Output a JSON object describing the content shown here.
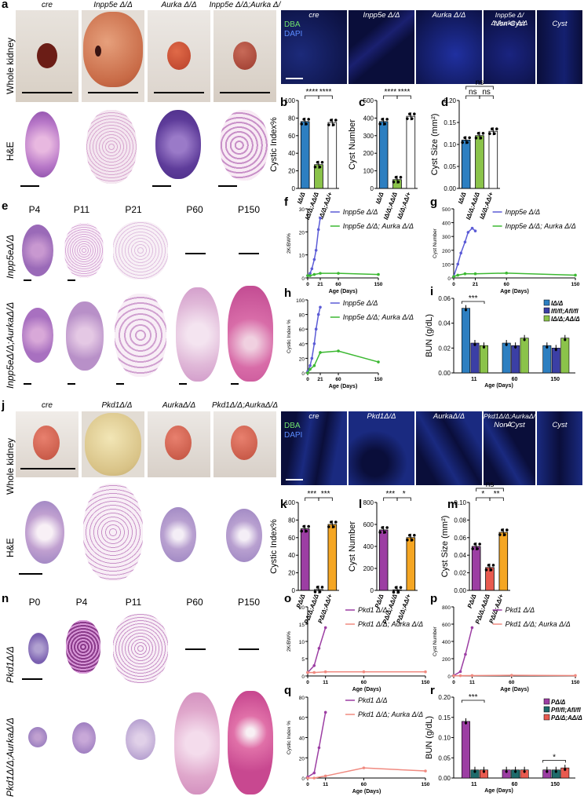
{
  "panels": {
    "a": "a",
    "b": "b",
    "c": "c",
    "d": "d",
    "e": "e",
    "f": "f",
    "g": "g",
    "h": "h",
    "i": "i",
    "j": "j",
    "k": "k",
    "l": "l",
    "m": "m",
    "n": "n",
    "o": "o",
    "p": "p",
    "q": "q",
    "r": "r"
  },
  "top": {
    "genotypes": [
      "cre",
      "Inpp5e Δ/Δ",
      "Aurka Δ/Δ",
      "Inpp5e Δ/Δ;Aurka Δ/Δ"
    ],
    "row_whole": "Whole kidney",
    "row_he": "H&E",
    "fluor_labels": [
      "cre",
      "Inpp5e Δ/Δ",
      "Aurka Δ/Δ",
      "Inpp5e Δ/Δ;Aurka Δ/Δ"
    ],
    "fluor_sub": [
      "Non-Cyst",
      "Cyst"
    ],
    "dba": "DBA",
    "dapi": "DAPI"
  },
  "e": {
    "timepoints": [
      "P4",
      "P11",
      "P21",
      "P60",
      "P150"
    ],
    "row1": "Inpp5eΔ/Δ",
    "row2": "Inpp5eΔ/Δ;AurkaΔ/Δ"
  },
  "j": {
    "genotypes": [
      "cre",
      "Pkd1Δ/Δ",
      "AurkaΔ/Δ",
      "Pkd1Δ/Δ;AurkaΔ/Δ"
    ],
    "fluor_labels": [
      "cre",
      "Pkd1Δ/Δ",
      "AurkaΔ/Δ",
      "Pkd1Δ/Δ;AurkaΔ/Δ"
    ],
    "fluor_sub": [
      "Non-Cyst",
      "Cyst"
    ],
    "row_whole": "Whole kidney",
    "row_he": "H&E"
  },
  "n": {
    "timepoints": [
      "P0",
      "P4",
      "P11",
      "P60",
      "P150"
    ],
    "row1": "Pkd1Δ/Δ",
    "row2": "Pkd1Δ/Δ;AurkaΔ/Δ"
  },
  "chart_data": [
    {
      "panel": "b",
      "type": "bar",
      "ylabel": "Cystic Index%",
      "ylim": [
        0,
        100
      ],
      "yticks": [
        0,
        20,
        40,
        60,
        80,
        100
      ],
      "categories": [
        "IΔ/Δ",
        "IΔ/Δ;AΔ/Δ",
        "IΔ/Δ;AΔ/+"
      ],
      "values": [
        76,
        27,
        75
      ],
      "colors": [
        "#2d7fc1",
        "#8bc34a",
        "#ffffff"
      ],
      "significance": [
        {
          "pair": [
            0,
            1
          ],
          "label": "****"
        },
        {
          "pair": [
            1,
            2
          ],
          "label": "****"
        }
      ]
    },
    {
      "panel": "c",
      "type": "bar",
      "ylabel": "Cyst Number",
      "ylim": [
        0,
        500
      ],
      "yticks": [
        0,
        100,
        200,
        300,
        400,
        500
      ],
      "categories": [
        "IΔ/Δ",
        "IΔ/Δ;AΔ/Δ",
        "IΔ/Δ;AΔ/+"
      ],
      "values": [
        380,
        50,
        410
      ],
      "colors": [
        "#2d7fc1",
        "#8bc34a",
        "#ffffff"
      ],
      "significance": [
        {
          "pair": [
            0,
            1
          ],
          "label": "****"
        },
        {
          "pair": [
            1,
            2
          ],
          "label": "****"
        }
      ]
    },
    {
      "panel": "d",
      "type": "bar",
      "ylabel": "Cyst Size (mm²)",
      "ylim": [
        0,
        0.2
      ],
      "yticks": [
        0.0,
        0.05,
        0.1,
        0.15,
        0.2
      ],
      "categories": [
        "IΔ/Δ",
        "IΔ/Δ;AΔ/Δ",
        "IΔ/Δ;AΔ/+"
      ],
      "values": [
        0.11,
        0.12,
        0.13
      ],
      "colors": [
        "#2d7fc1",
        "#8bc34a",
        "#ffffff"
      ],
      "significance": [
        {
          "pair": [
            0,
            2
          ],
          "label": "ns"
        },
        {
          "pair": [
            0,
            1
          ],
          "label": "ns"
        },
        {
          "pair": [
            1,
            2
          ],
          "label": "ns"
        }
      ]
    },
    {
      "panel": "f",
      "type": "line",
      "ylabel": "2K/BW%",
      "xlabel": "Age (Days)",
      "ylim": [
        0,
        30
      ],
      "yticks": [
        0,
        10,
        20,
        30
      ],
      "xticks": [
        0,
        21,
        60,
        150
      ],
      "series": [
        {
          "name": "Inpp5e Δ/Δ",
          "color": "#5b5bd6",
          "x": [
            0,
            4,
            7,
            11,
            14,
            18,
            21
          ],
          "y": [
            1,
            2,
            4,
            8,
            12,
            21,
            26
          ]
        },
        {
          "name": "Inpp5e Δ/Δ; Aurka Δ/Δ",
          "color": "#3cb832",
          "x": [
            0,
            4,
            11,
            21,
            60,
            150
          ],
          "y": [
            1,
            1,
            1.5,
            2,
            2,
            1.5
          ]
        }
      ]
    },
    {
      "panel": "g",
      "type": "line",
      "ylabel": "Cyst Number",
      "xlabel": "Age (Days)",
      "ylim": [
        0,
        500
      ],
      "yticks": [
        0,
        100,
        200,
        300,
        400,
        500
      ],
      "xticks": [
        0,
        21,
        60,
        150
      ],
      "series": [
        {
          "name": "Inpp5e Δ/Δ",
          "color": "#5b5bd6",
          "x": [
            0,
            4,
            7,
            11,
            14,
            18,
            21
          ],
          "y": [
            10,
            100,
            180,
            260,
            330,
            360,
            340
          ]
        },
        {
          "name": "Inpp5e Δ/Δ; Aurka Δ/Δ",
          "color": "#3cb832",
          "x": [
            0,
            4,
            11,
            21,
            60,
            150
          ],
          "y": [
            10,
            20,
            30,
            30,
            35,
            20
          ]
        }
      ]
    },
    {
      "panel": "h",
      "type": "line",
      "ylabel": "Cystic Index %",
      "xlabel": "Age (Days)",
      "ylim": [
        0,
        100
      ],
      "yticks": [
        0,
        20,
        40,
        60,
        80,
        100
      ],
      "xticks": [
        0,
        21,
        60,
        150
      ],
      "series": [
        {
          "name": "Inpp5e Δ/Δ",
          "color": "#5b5bd6",
          "x": [
            0,
            4,
            7,
            11,
            14,
            18,
            21
          ],
          "y": [
            2,
            10,
            20,
            40,
            60,
            80,
            90
          ]
        },
        {
          "name": "Inpp5e Δ/Δ; Aurka Δ/Δ",
          "color": "#3cb832",
          "x": [
            0,
            4,
            11,
            21,
            60,
            150
          ],
          "y": [
            0,
            5,
            10,
            28,
            30,
            15
          ]
        }
      ]
    },
    {
      "panel": "i",
      "type": "bar",
      "ylabel": "BUN (g/dL)",
      "xlabel": "Age (Days)",
      "ylim": [
        0,
        0.06
      ],
      "yticks": [
        0.0,
        0.02,
        0.04,
        0.06
      ],
      "categories": [
        "11",
        "60",
        "150"
      ],
      "series": [
        {
          "name": "IΔ/Δ",
          "color": "#2d7fc1",
          "values": [
            0.052,
            0.024,
            0.022
          ]
        },
        {
          "name": "Ifl/fl;Afl/fl",
          "color": "#3b3fa5",
          "values": [
            0.024,
            0.022,
            0.02
          ]
        },
        {
          "name": "IΔ/Δ;AΔ/Δ",
          "color": "#8bc34a",
          "values": [
            0.022,
            0.028,
            0.028
          ]
        }
      ],
      "significance": [
        {
          "label": "***"
        }
      ]
    },
    {
      "panel": "k",
      "type": "bar",
      "ylabel": "Cystic Index%",
      "ylim": [
        0,
        100
      ],
      "yticks": [
        0,
        20,
        40,
        60,
        80,
        100
      ],
      "categories": [
        "PΔ/Δ",
        "PΔ/Δ;AΔ/Δ",
        "PΔ/Δ;AΔ/+"
      ],
      "values": [
        70,
        1,
        75
      ],
      "colors": [
        "#9c3ea3",
        "#ffffff",
        "#f5a623"
      ],
      "significance": [
        {
          "pair": [
            0,
            1
          ],
          "label": "***"
        },
        {
          "pair": [
            1,
            2
          ],
          "label": "***"
        }
      ]
    },
    {
      "panel": "l",
      "type": "bar",
      "ylabel": "Cyst Number",
      "ylim": [
        0,
        800
      ],
      "yticks": [
        0,
        200,
        400,
        600,
        800
      ],
      "categories": [
        "PΔ/Δ",
        "PΔ/Δ;AΔ/Δ",
        "PΔ/Δ;AΔ/+"
      ],
      "values": [
        550,
        5,
        480
      ],
      "colors": [
        "#9c3ea3",
        "#ffffff",
        "#f5a623"
      ],
      "significance": [
        {
          "pair": [
            0,
            1
          ],
          "label": "***"
        },
        {
          "pair": [
            1,
            2
          ],
          "label": "*"
        }
      ]
    },
    {
      "panel": "m",
      "type": "bar",
      "ylabel": "Cyst Size (mm²)",
      "ylim": [
        0,
        0.1
      ],
      "yticks": [
        0.0,
        0.02,
        0.04,
        0.06,
        0.08,
        0.1
      ],
      "categories": [
        "PΔ/Δ",
        "PΔ/Δ;AΔ/Δ",
        "PΔ/Δ;AΔ/+"
      ],
      "values": [
        0.05,
        0.026,
        0.066
      ],
      "colors": [
        "#9c3ea3",
        "#e85a4f",
        "#f5a623"
      ],
      "significance": [
        {
          "pair": [
            0,
            2
          ],
          "label": "ns"
        },
        {
          "pair": [
            0,
            1
          ],
          "label": "*"
        },
        {
          "pair": [
            1,
            2
          ],
          "label": "**"
        }
      ]
    },
    {
      "panel": "o",
      "type": "line",
      "ylabel": "2K/BW%",
      "xlabel": "Age (Days)",
      "ylim": [
        0,
        20
      ],
      "yticks": [
        0,
        5,
        10,
        15,
        20
      ],
      "xticks": [
        0,
        11,
        60,
        150
      ],
      "series": [
        {
          "name": "Pkd1 Δ/Δ",
          "color": "#9c3ea3",
          "x": [
            0,
            4,
            7,
            11
          ],
          "y": [
            1,
            3,
            8,
            14
          ]
        },
        {
          "name": "Pkd1 Δ/Δ; Aurka Δ/Δ",
          "color": "#f08a80",
          "x": [
            0,
            4,
            11,
            60,
            150
          ],
          "y": [
            1,
            1,
            1.2,
            1.2,
            1.2
          ]
        }
      ]
    },
    {
      "panel": "p",
      "type": "line",
      "ylabel": "Cyst Number",
      "xlabel": "Age (Days)",
      "ylim": [
        0,
        800
      ],
      "yticks": [
        0,
        200,
        400,
        600,
        800
      ],
      "xticks": [
        0,
        11,
        60,
        150
      ],
      "series": [
        {
          "name": "Pkd1 Δ/Δ",
          "color": "#9c3ea3",
          "x": [
            0,
            4,
            7,
            11
          ],
          "y": [
            5,
            50,
            250,
            560
          ]
        },
        {
          "name": "Pkd1 Δ/Δ; Aurka Δ/Δ",
          "color": "#f08a80",
          "x": [
            0,
            4,
            11,
            60,
            150
          ],
          "y": [
            2,
            3,
            5,
            8,
            5
          ]
        }
      ]
    },
    {
      "panel": "q",
      "type": "line",
      "ylabel": "Cystic Index %",
      "xlabel": "Age (Days)",
      "ylim": [
        0,
        80
      ],
      "yticks": [
        0,
        20,
        40,
        60,
        80
      ],
      "xticks": [
        0,
        11,
        60,
        150
      ],
      "series": [
        {
          "name": "Pkd1 Δ/Δ",
          "color": "#9c3ea3",
          "x": [
            0,
            4,
            7,
            11
          ],
          "y": [
            1,
            5,
            30,
            65
          ]
        },
        {
          "name": "Pkd1 Δ/Δ; Aurka Δ/Δ",
          "color": "#f08a80",
          "x": [
            0,
            4,
            11,
            60,
            150
          ],
          "y": [
            0,
            0,
            2,
            10,
            7
          ]
        }
      ]
    },
    {
      "panel": "r",
      "type": "bar",
      "ylabel": "BUN (g/dL)",
      "xlabel": "Age (Days)",
      "ylim": [
        0,
        0.2
      ],
      "yticks": [
        0.0,
        0.05,
        0.1,
        0.15,
        0.2
      ],
      "categories": [
        "11",
        "60",
        "150"
      ],
      "series": [
        {
          "name": "PΔ/Δ",
          "color": "#9c3ea3",
          "values": [
            0.14,
            0.02,
            0.02
          ]
        },
        {
          "name": "Pfl/fl;Afl/fl",
          "color": "#1e6b6b",
          "values": [
            0.02,
            0.02,
            0.02
          ]
        },
        {
          "name": "PΔ/Δ;AΔ/Δ",
          "color": "#e85a4f",
          "values": [
            0.02,
            0.02,
            0.025
          ]
        }
      ],
      "significance": [
        {
          "label": "***"
        },
        {
          "label": "*"
        }
      ]
    }
  ]
}
